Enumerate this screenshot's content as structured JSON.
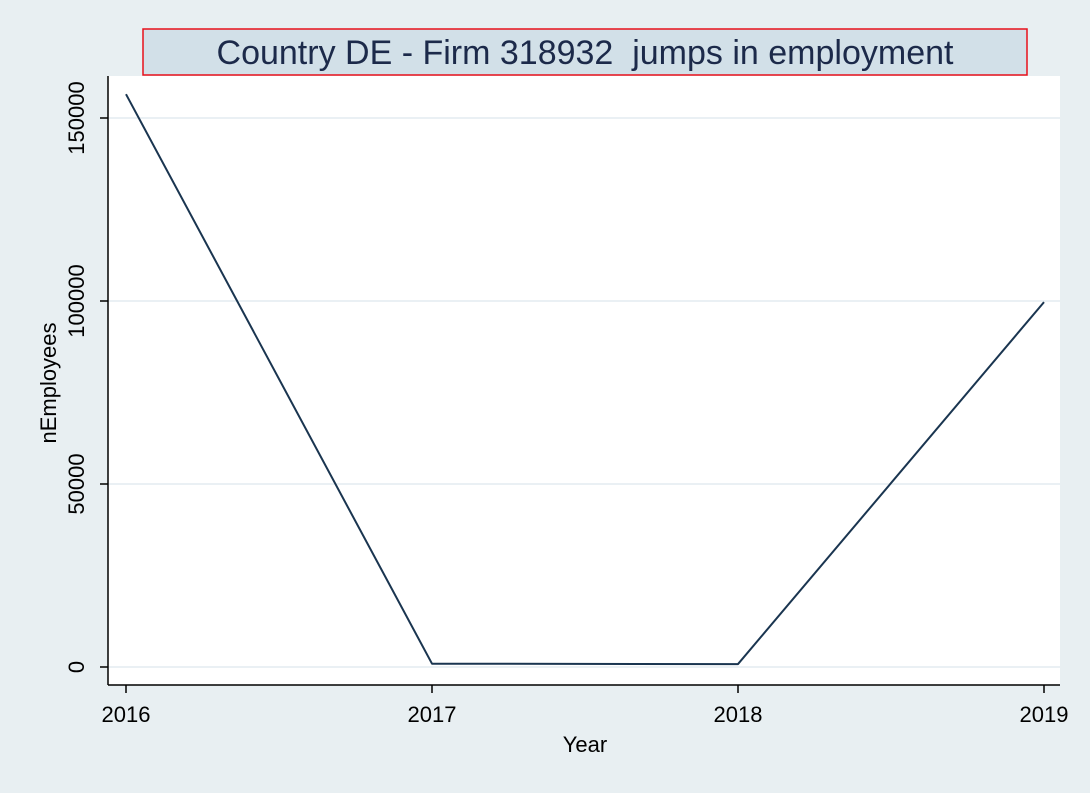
{
  "chart_data": {
    "type": "line",
    "title": "Country DE - Firm 318932  jumps in employment",
    "xlabel": "Year",
    "ylabel": "nEmployees",
    "x": [
      2016,
      2017,
      2018,
      2019
    ],
    "series": [
      {
        "values": [
          156500,
          900,
          800,
          99700
        ]
      }
    ],
    "xticks": [
      "2016",
      "2017",
      "2018",
      "2019"
    ],
    "yticks": [
      "0",
      "50000",
      "100000",
      "150000"
    ],
    "xlim": [
      2016,
      2019
    ],
    "ylim": [
      0,
      150000
    ],
    "grid": "horizontal",
    "colors": {
      "background": "#e8eff2",
      "plot_background": "#ffffff",
      "line": "#1a3550",
      "grid": "#e3ecf0",
      "title_box_fill": "#d2e0e8",
      "title_box_border": "#e8101b"
    }
  }
}
